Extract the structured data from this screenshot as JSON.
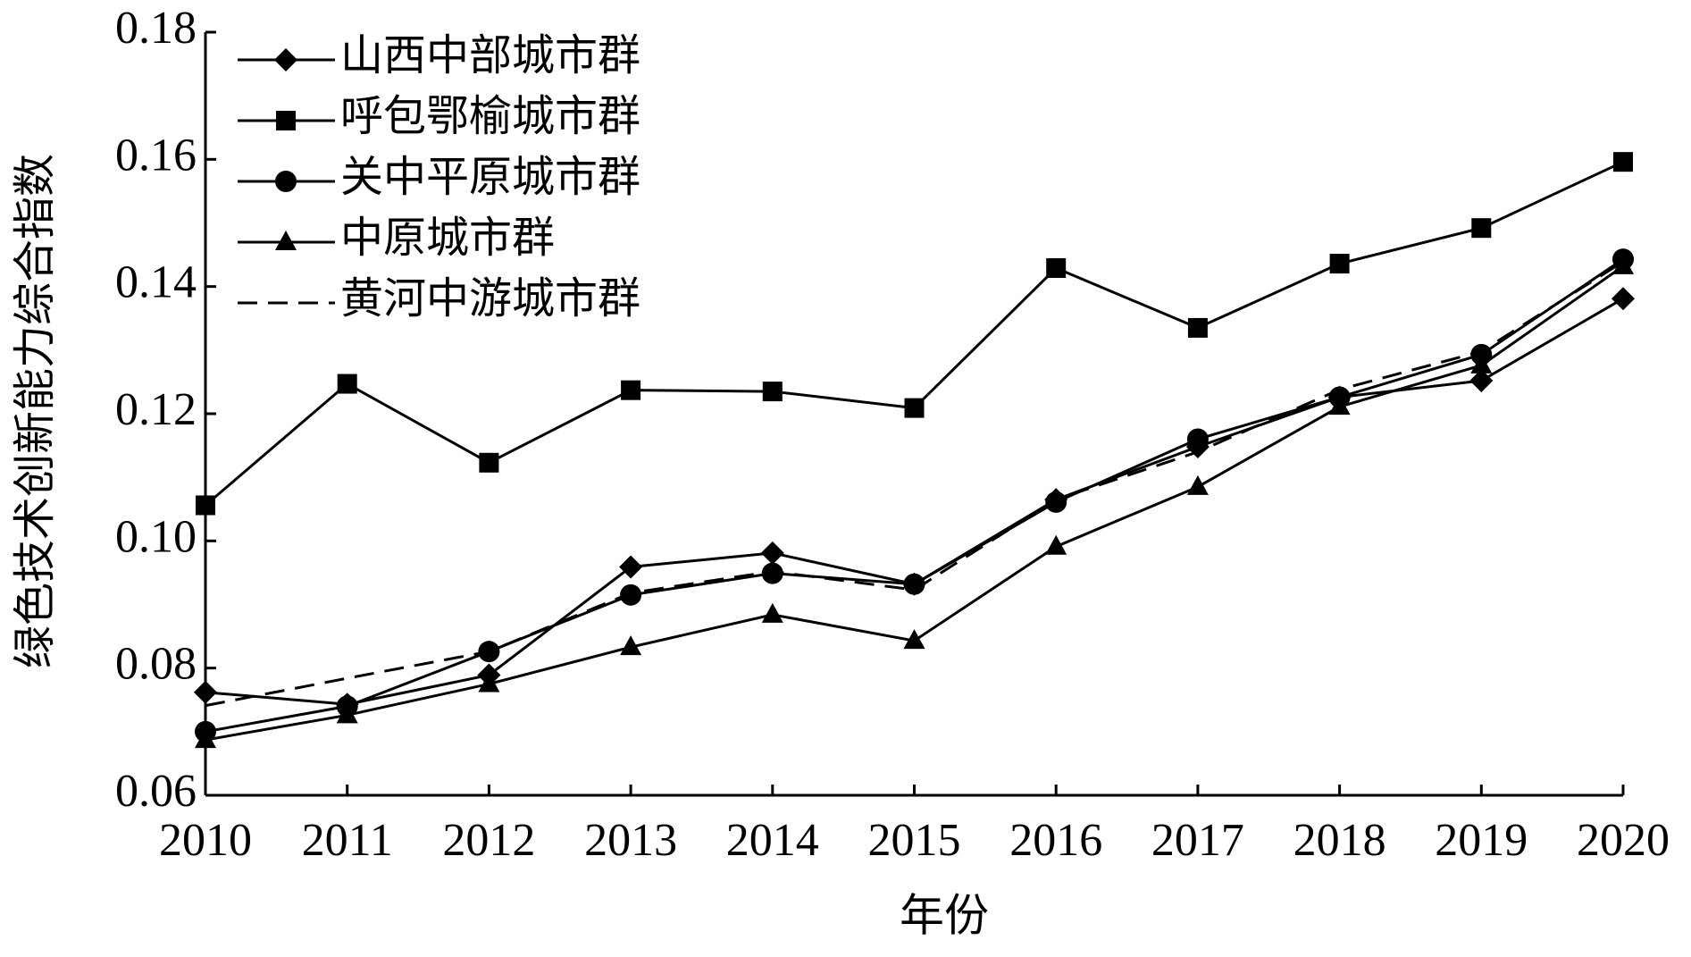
{
  "chart_data": {
    "type": "line",
    "x_label": "年份",
    "y_label": "绿色技术创新能力综合指数",
    "categories": [
      "2010",
      "2011",
      "2012",
      "2013",
      "2014",
      "2015",
      "2016",
      "2017",
      "2018",
      "2019",
      "2020"
    ],
    "series": [
      {
        "name": "山西中部城市群",
        "color": "#000000",
        "marker": "diamond",
        "dash": false,
        "values": [
          0.0762,
          0.0743,
          0.0789,
          0.0959,
          0.0981,
          0.0932,
          0.1065,
          0.1148,
          0.1226,
          0.1252,
          0.1381
        ]
      },
      {
        "name": "呼包鄂榆城市群",
        "color": "#000000",
        "marker": "square",
        "dash": false,
        "values": [
          0.1056,
          0.1247,
          0.1123,
          0.1237,
          0.1235,
          0.1209,
          0.1429,
          0.1335,
          0.1436,
          0.1492,
          0.1596
        ]
      },
      {
        "name": "关中平原城市群",
        "color": "#000000",
        "marker": "circle",
        "dash": false,
        "values": [
          0.07,
          0.074,
          0.0826,
          0.0915,
          0.0949,
          0.0932,
          0.1061,
          0.116,
          0.1226,
          0.1293,
          0.1443
        ]
      },
      {
        "name": "中原城市群",
        "color": "#000000",
        "marker": "triangle",
        "dash": false,
        "values": [
          0.0687,
          0.0726,
          0.0775,
          0.0833,
          0.0884,
          0.0843,
          0.0991,
          0.1085,
          0.1211,
          0.1276,
          0.1432
        ]
      },
      {
        "name": "黄河中游城市群",
        "color": "#000000",
        "marker": "none",
        "dash": true,
        "values": [
          0.0741,
          0.0784,
          0.0826,
          0.0918,
          0.0952,
          0.0923,
          0.1065,
          0.114,
          0.1238,
          0.1298,
          0.1439
        ]
      }
    ],
    "ylim": [
      0.06,
      0.18
    ],
    "yticks": [
      0.06,
      0.08,
      {
        "value": 0.1,
        "label": "0.10"
      },
      0.12,
      0.14,
      0.16,
      0.18
    ],
    "grid": false,
    "legend": "upper left"
  }
}
